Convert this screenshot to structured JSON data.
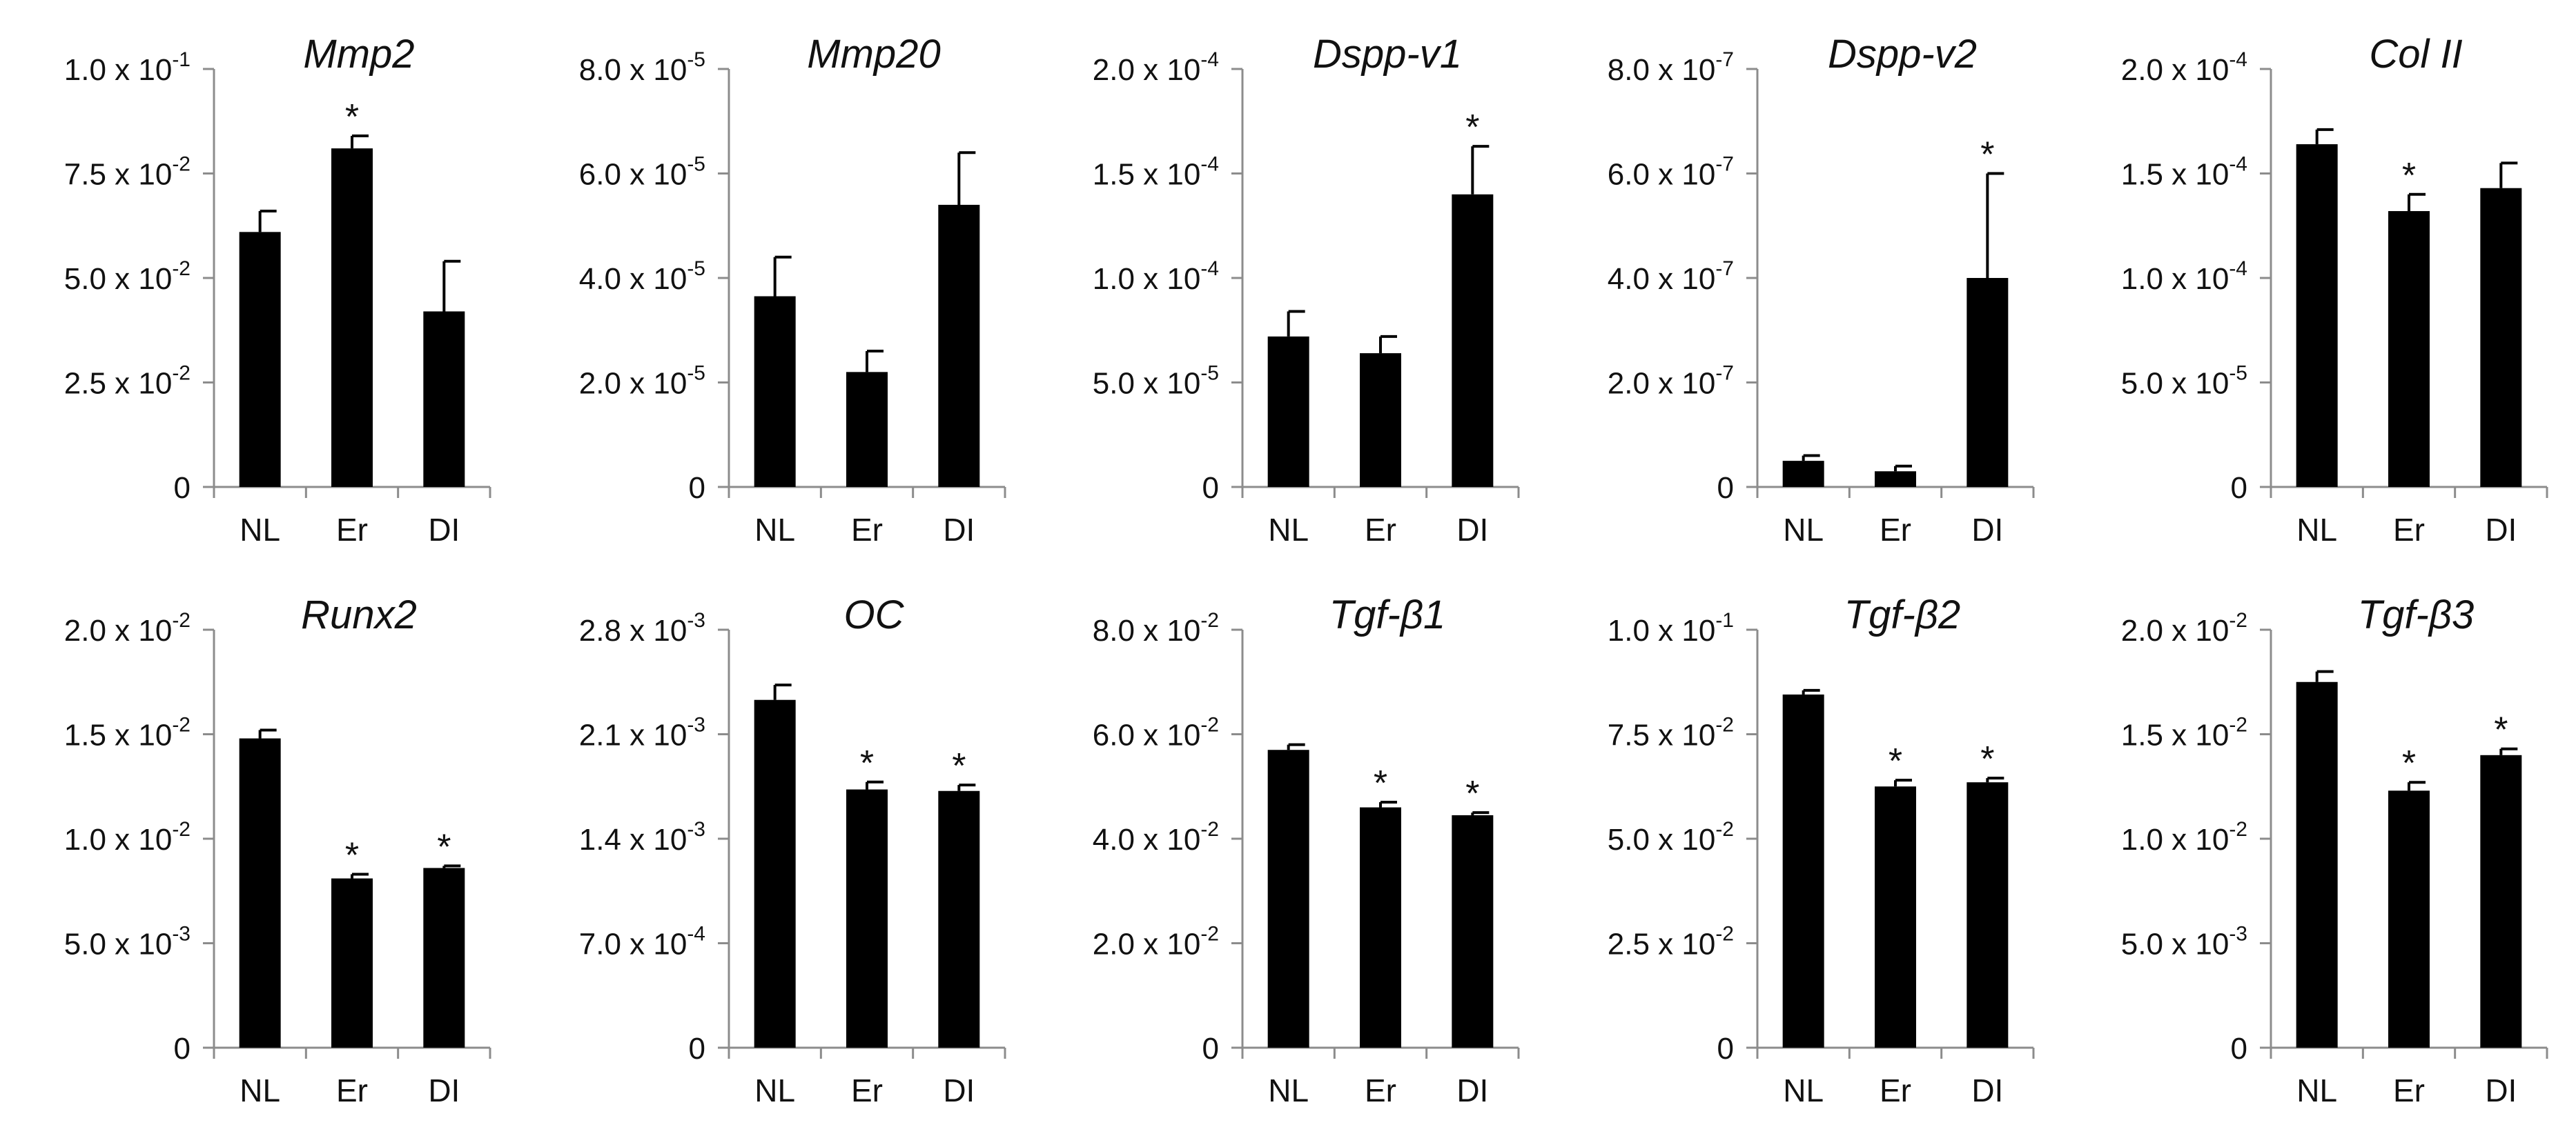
{
  "figure": {
    "background": "#ffffff",
    "bar_color": "#000000",
    "axis_color": "#8c8c8c"
  },
  "chart_data": [
    {
      "type": "bar",
      "title": "Mmp2",
      "categories": [
        "NL",
        "Er",
        "DI"
      ],
      "values": [
        0.061,
        0.081,
        0.042
      ],
      "errors": [
        0.005,
        0.003,
        0.012
      ],
      "significant": [
        false,
        true,
        false
      ],
      "sig_label": "*",
      "ylim": [
        0,
        0.1
      ],
      "yticks": [
        0,
        0.025,
        0.05,
        0.075,
        0.1
      ],
      "ytick_labels": [
        {
          "mant": "0",
          "exp": ""
        },
        {
          "mant": "2.5 x 10",
          "exp": "-2"
        },
        {
          "mant": "5.0 x 10",
          "exp": "-2"
        },
        {
          "mant": "7.5 x 10",
          "exp": "-2"
        },
        {
          "mant": "1.0 x 10",
          "exp": "-1"
        }
      ]
    },
    {
      "type": "bar",
      "title": "Mmp20",
      "categories": [
        "NL",
        "Er",
        "DI"
      ],
      "values": [
        3.65e-05,
        2.2e-05,
        5.4e-05
      ],
      "errors": [
        7.5e-06,
        4e-06,
        1e-05
      ],
      "significant": [
        false,
        false,
        false
      ],
      "sig_label": "*",
      "ylim": [
        0,
        8e-05
      ],
      "yticks": [
        0,
        2e-05,
        4e-05,
        6e-05,
        8e-05
      ],
      "ytick_labels": [
        {
          "mant": "0",
          "exp": ""
        },
        {
          "mant": "2.0 x 10",
          "exp": "-5"
        },
        {
          "mant": "4.0 x 10",
          "exp": "-5"
        },
        {
          "mant": "6.0 x 10",
          "exp": "-5"
        },
        {
          "mant": "8.0 x 10",
          "exp": "-5"
        }
      ]
    },
    {
      "type": "bar",
      "title": "Dspp-v1",
      "categories": [
        "NL",
        "Er",
        "DI"
      ],
      "values": [
        7.2e-05,
        6.4e-05,
        0.00014
      ],
      "errors": [
        1.2e-05,
        8e-06,
        2.3e-05
      ],
      "significant": [
        false,
        false,
        true
      ],
      "sig_label": "*",
      "ylim": [
        0,
        0.0002
      ],
      "yticks": [
        0,
        5e-05,
        0.0001,
        0.00015,
        0.0002
      ],
      "ytick_labels": [
        {
          "mant": "0",
          "exp": ""
        },
        {
          "mant": "5.0 x 10",
          "exp": "-5"
        },
        {
          "mant": "1.0 x 10",
          "exp": "-4"
        },
        {
          "mant": "1.5 x 10",
          "exp": "-4"
        },
        {
          "mant": "2.0 x 10",
          "exp": "-4"
        }
      ]
    },
    {
      "type": "bar",
      "title": "Dspp-v2",
      "categories": [
        "NL",
        "Er",
        "DI"
      ],
      "values": [
        5e-08,
        3e-08,
        4e-07
      ],
      "errors": [
        1e-08,
        1e-08,
        2e-07
      ],
      "significant": [
        false,
        false,
        true
      ],
      "sig_label": "*",
      "ylim": [
        0,
        8e-07
      ],
      "yticks": [
        0,
        2e-07,
        4e-07,
        6e-07,
        8e-07
      ],
      "ytick_labels": [
        {
          "mant": "0",
          "exp": ""
        },
        {
          "mant": "2.0 x 10",
          "exp": "-7"
        },
        {
          "mant": "4.0 x 10",
          "exp": "-7"
        },
        {
          "mant": "6.0 x 10",
          "exp": "-7"
        },
        {
          "mant": "8.0 x 10",
          "exp": "-7"
        }
      ]
    },
    {
      "type": "bar",
      "title": "Col II",
      "categories": [
        "NL",
        "Er",
        "DI"
      ],
      "values": [
        0.000164,
        0.000132,
        0.000143
      ],
      "errors": [
        7e-06,
        8e-06,
        1.2e-05
      ],
      "significant": [
        false,
        true,
        false
      ],
      "sig_label": "*",
      "ylim": [
        0,
        0.0002
      ],
      "yticks": [
        0,
        5e-05,
        0.0001,
        0.00015,
        0.0002
      ],
      "ytick_labels": [
        {
          "mant": "0",
          "exp": ""
        },
        {
          "mant": "5.0 x 10",
          "exp": "-5"
        },
        {
          "mant": "1.0 x 10",
          "exp": "-4"
        },
        {
          "mant": "1.5 x 10",
          "exp": "-4"
        },
        {
          "mant": "2.0 x 10",
          "exp": "-4"
        }
      ]
    },
    {
      "type": "bar",
      "title": "Runx2",
      "categories": [
        "NL",
        "Er",
        "DI"
      ],
      "values": [
        0.0148,
        0.0081,
        0.0086
      ],
      "errors": [
        0.0004,
        0.0002,
        0.0001
      ],
      "significant": [
        false,
        true,
        true
      ],
      "sig_label": "*",
      "ylim": [
        0,
        0.02
      ],
      "yticks": [
        0,
        0.005,
        0.01,
        0.015,
        0.02
      ],
      "ytick_labels": [
        {
          "mant": "0",
          "exp": ""
        },
        {
          "mant": "5.0 x 10",
          "exp": "-3"
        },
        {
          "mant": "1.0 x 10",
          "exp": "-2"
        },
        {
          "mant": "1.5 x 10",
          "exp": "-2"
        },
        {
          "mant": "2.0 x 10",
          "exp": "-2"
        }
      ]
    },
    {
      "type": "bar",
      "title": "OC",
      "categories": [
        "NL",
        "Er",
        "DI"
      ],
      "values": [
        0.00233,
        0.00173,
        0.00172
      ],
      "errors": [
        0.0001,
        5e-05,
        4e-05
      ],
      "significant": [
        false,
        true,
        true
      ],
      "sig_label": "*",
      "ylim": [
        0,
        0.0028
      ],
      "yticks": [
        0,
        0.0007,
        0.0014,
        0.0021,
        0.0028
      ],
      "ytick_labels": [
        {
          "mant": "0",
          "exp": ""
        },
        {
          "mant": "7.0 x 10",
          "exp": "-4"
        },
        {
          "mant": "1.4 x 10",
          "exp": "-3"
        },
        {
          "mant": "2.1 x 10",
          "exp": "-3"
        },
        {
          "mant": "2.8 x 10",
          "exp": "-3"
        }
      ]
    },
    {
      "type": "bar",
      "title": "Tgf-β1",
      "categories": [
        "NL",
        "Er",
        "DI"
      ],
      "values": [
        0.057,
        0.046,
        0.0445
      ],
      "errors": [
        0.001,
        0.001,
        0.0005
      ],
      "significant": [
        false,
        true,
        true
      ],
      "sig_label": "*",
      "ylim": [
        0,
        0.08
      ],
      "yticks": [
        0,
        0.02,
        0.04,
        0.06,
        0.08
      ],
      "ytick_labels": [
        {
          "mant": "0",
          "exp": ""
        },
        {
          "mant": "2.0 x 10",
          "exp": "-2"
        },
        {
          "mant": "4.0 x 10",
          "exp": "-2"
        },
        {
          "mant": "6.0 x 10",
          "exp": "-2"
        },
        {
          "mant": "8.0 x 10",
          "exp": "-2"
        }
      ]
    },
    {
      "type": "bar",
      "title": "Tgf-β2",
      "categories": [
        "NL",
        "Er",
        "DI"
      ],
      "values": [
        0.0845,
        0.0625,
        0.0635
      ],
      "errors": [
        0.001,
        0.0015,
        0.001
      ],
      "significant": [
        false,
        true,
        true
      ],
      "sig_label": "*",
      "ylim": [
        0,
        0.1
      ],
      "yticks": [
        0,
        0.025,
        0.05,
        0.075,
        0.1
      ],
      "ytick_labels": [
        {
          "mant": "0",
          "exp": ""
        },
        {
          "mant": "2.5 x 10",
          "exp": "-2"
        },
        {
          "mant": "5.0 x 10",
          "exp": "-2"
        },
        {
          "mant": "7.5 x 10",
          "exp": "-2"
        },
        {
          "mant": "1.0 x 10",
          "exp": "-1"
        }
      ]
    },
    {
      "type": "bar",
      "title": "Tgf-β3",
      "categories": [
        "NL",
        "Er",
        "DI"
      ],
      "values": [
        0.0175,
        0.0123,
        0.014
      ],
      "errors": [
        0.0005,
        0.0004,
        0.0003
      ],
      "significant": [
        false,
        true,
        true
      ],
      "sig_label": "*",
      "ylim": [
        0,
        0.02
      ],
      "yticks": [
        0,
        0.005,
        0.01,
        0.015,
        0.02
      ],
      "ytick_labels": [
        {
          "mant": "0",
          "exp": ""
        },
        {
          "mant": "5.0 x 10",
          "exp": "-3"
        },
        {
          "mant": "1.0 x 10",
          "exp": "-2"
        },
        {
          "mant": "1.5 x 10",
          "exp": "-2"
        },
        {
          "mant": "2.0 x 10",
          "exp": "-2"
        }
      ]
    }
  ]
}
